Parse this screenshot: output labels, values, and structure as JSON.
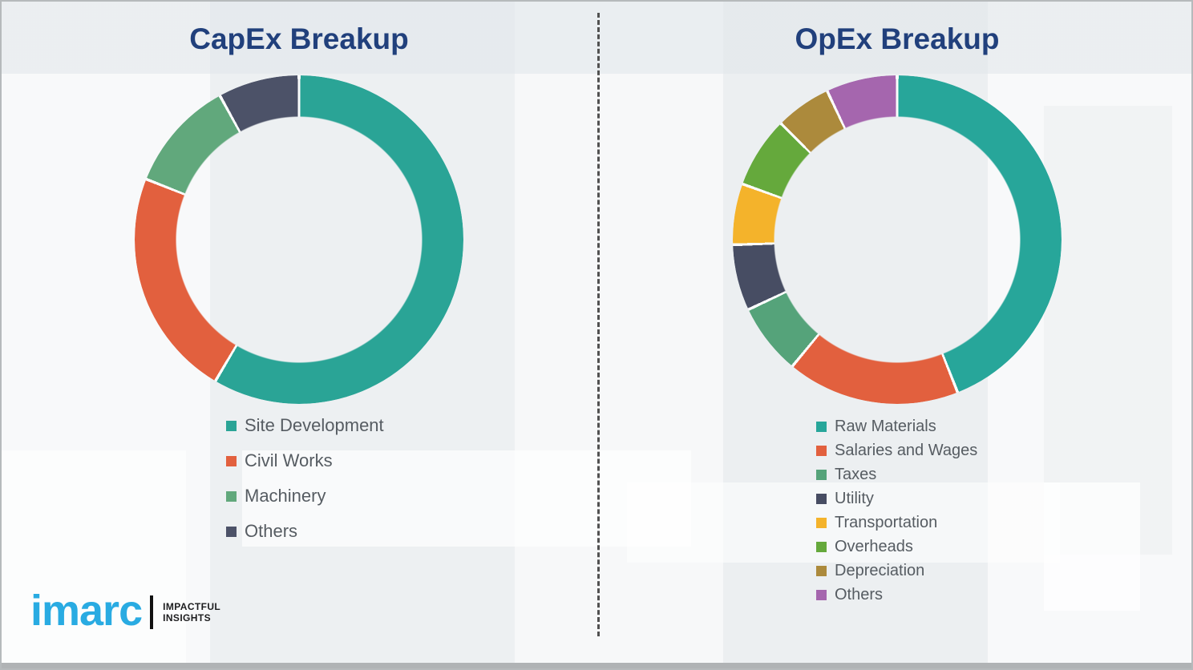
{
  "chart_data": [
    {
      "type": "pie",
      "variant": "donut",
      "title": "CapEx Breakup",
      "categories": [
        "Site Development",
        "Civil Works",
        "Machinery",
        "Others"
      ],
      "values": [
        58.5,
        22.5,
        11,
        8
      ],
      "colors": [
        "#2aa496",
        "#e2603e",
        "#61a87c",
        "#4c5268"
      ],
      "unit": "percent (estimated from arc angles)",
      "start_angle_deg": 0,
      "direction": "clockwise",
      "legend_position": "below-left",
      "hole_ratio": 0.755,
      "segment_gap_color": "#fbfcfc"
    },
    {
      "type": "pie",
      "variant": "donut",
      "title": "OpEx Breakup",
      "categories": [
        "Raw Materials",
        "Salaries and Wages",
        "Taxes",
        "Utility",
        "Transportation",
        "Overheads",
        "Depreciation",
        "Others"
      ],
      "values": [
        44,
        17,
        7,
        6.5,
        6,
        7,
        5.5,
        7
      ],
      "colors": [
        "#27a69a",
        "#e2603e",
        "#55a37a",
        "#474d63",
        "#f4b32b",
        "#65a93c",
        "#ac8a3c",
        "#a566ae"
      ],
      "unit": "percent (estimated from arc angles)",
      "start_angle_deg": 0,
      "direction": "clockwise",
      "legend_position": "below-left",
      "hole_ratio": 0.755,
      "segment_gap_color": "#fbfcfc"
    }
  ],
  "ui": {
    "title_color": "#21407c",
    "legend_text_color": "#565c62",
    "divider_style": "vertical dashed line"
  },
  "logo": {
    "brand": "imarc",
    "brand_color": "#29abe2",
    "tagline_top": "IMPACTFUL",
    "tagline_bottom": "INSIGHTS"
  }
}
